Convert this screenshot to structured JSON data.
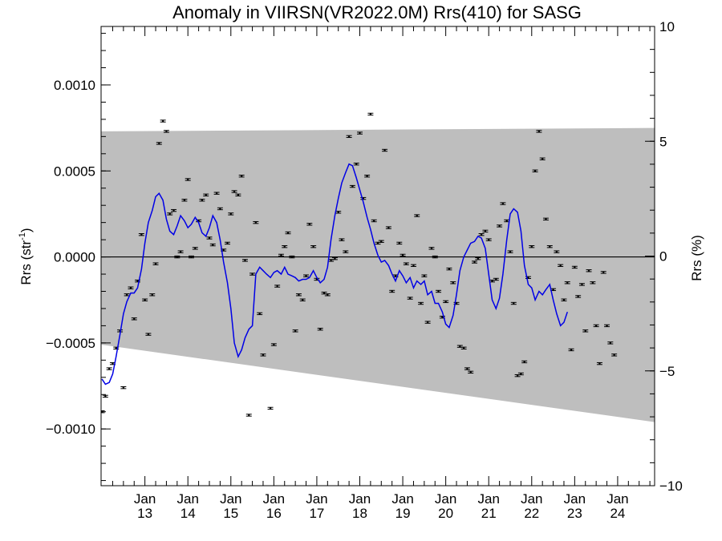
{
  "chart_data": {
    "type": "scatter",
    "title": "Anomaly in VIIRSN(VR2022.0M) Rrs(410) for SASG",
    "ylabel_left": {
      "base": "Rrs (str",
      "sup": "-1",
      "close": ")"
    },
    "ylabel_right": "Rrs (%)",
    "xlim": [
      2011.98,
      2024.86
    ],
    "ylim_left": [
      -0.00133,
      0.00134
    ],
    "ylim_right": [
      -10,
      10
    ],
    "x_ticks": [
      {
        "x": 2013.0,
        "top": "Jan",
        "bottom": "13"
      },
      {
        "x": 2014.0,
        "top": "Jan",
        "bottom": "14"
      },
      {
        "x": 2015.0,
        "top": "Jan",
        "bottom": "15"
      },
      {
        "x": 2016.0,
        "top": "Jan",
        "bottom": "16"
      },
      {
        "x": 2017.0,
        "top": "Jan",
        "bottom": "17"
      },
      {
        "x": 2018.0,
        "top": "Jan",
        "bottom": "18"
      },
      {
        "x": 2019.0,
        "top": "Jan",
        "bottom": "19"
      },
      {
        "x": 2020.0,
        "top": "Jan",
        "bottom": "20"
      },
      {
        "x": 2021.0,
        "top": "Jan",
        "bottom": "21"
      },
      {
        "x": 2022.0,
        "top": "Jan",
        "bottom": "22"
      },
      {
        "x": 2023.0,
        "top": "Jan",
        "bottom": "23"
      },
      {
        "x": 2024.0,
        "top": "Jan",
        "bottom": "24"
      }
    ],
    "y_ticks_left": [
      {
        "v": 0.001,
        "label": "0.0010"
      },
      {
        "v": 0.0005,
        "label": "0.0005"
      },
      {
        "v": 0.0,
        "label": "0.0000"
      },
      {
        "v": -0.0005,
        "label": "−0.0005"
      },
      {
        "v": -0.001,
        "label": "−0.0010"
      }
    ],
    "y_ticks_right": [
      {
        "v": 10,
        "label": "10"
      },
      {
        "v": 5,
        "label": "5"
      },
      {
        "v": 0,
        "label": "0"
      },
      {
        "v": -5,
        "label": "−5"
      },
      {
        "v": -10,
        "label": "−10"
      }
    ],
    "band": {
      "upper": [
        [
          2011.98,
          0.00073
        ],
        [
          2024.86,
          0.00075
        ]
      ],
      "lower": [
        [
          2011.98,
          -0.00051
        ],
        [
          2024.86,
          -0.00096
        ]
      ],
      "color": "#bebebe"
    },
    "zero_line": 0,
    "points": [
      [
        2012.0,
        -0.0009
      ],
      [
        2012.08,
        -0.00081
      ],
      [
        2012.17,
        -0.00065
      ],
      [
        2012.25,
        -0.00062
      ],
      [
        2012.33,
        -0.00053
      ],
      [
        2012.42,
        -0.00043
      ],
      [
        2012.5,
        -0.00076
      ],
      [
        2012.58,
        -0.00022
      ],
      [
        2012.67,
        -0.00018
      ],
      [
        2012.75,
        -0.00036
      ],
      [
        2012.83,
        -0.00014
      ],
      [
        2012.92,
        0.00013
      ],
      [
        2013.0,
        -0.00025
      ],
      [
        2013.08,
        -0.00045
      ],
      [
        2013.17,
        -0.00022
      ],
      [
        2013.25,
        -4e-05
      ],
      [
        2013.33,
        0.00066
      ],
      [
        2013.42,
        0.00079
      ],
      [
        2013.5,
        0.00073
      ],
      [
        2013.58,
        0.00025
      ],
      [
        2013.67,
        0.00027
      ],
      [
        2013.75,
        0.0
      ],
      [
        2013.83,
        3e-05
      ],
      [
        2013.92,
        0.00033
      ],
      [
        2014.0,
        0.00045
      ],
      [
        2014.08,
        0.0
      ],
      [
        2014.17,
        5e-05
      ],
      [
        2014.25,
        0.00021
      ],
      [
        2014.33,
        0.00033
      ],
      [
        2014.42,
        0.00036
      ],
      [
        2014.5,
        0.00011
      ],
      [
        2014.58,
        7e-05
      ],
      [
        2014.67,
        0.00037
      ],
      [
        2014.75,
        0.00028
      ],
      [
        2014.83,
        4e-05
      ],
      [
        2014.92,
        8e-05
      ],
      [
        2015.0,
        0.00025
      ],
      [
        2015.08,
        0.00038
      ],
      [
        2015.17,
        0.00036
      ],
      [
        2015.25,
        0.00047
      ],
      [
        2015.33,
        -2e-05
      ],
      [
        2015.42,
        -0.00092
      ],
      [
        2015.5,
        -0.0001
      ],
      [
        2015.58,
        0.0002
      ],
      [
        2015.67,
        -0.00033
      ],
      [
        2015.75,
        -0.00057
      ],
      [
        2015.92,
        -0.00088
      ],
      [
        2016.0,
        -0.00051
      ],
      [
        2016.08,
        -0.00017
      ],
      [
        2016.17,
        1e-05
      ],
      [
        2016.25,
        6e-05
      ],
      [
        2016.33,
        0.00014
      ],
      [
        2016.42,
        0.0
      ],
      [
        2016.5,
        -0.00043
      ],
      [
        2016.58,
        -0.00022
      ],
      [
        2016.67,
        -0.00025
      ],
      [
        2016.75,
        -0.00011
      ],
      [
        2016.83,
        0.00019
      ],
      [
        2016.92,
        6e-05
      ],
      [
        2017.0,
        -0.00013
      ],
      [
        2017.08,
        -0.00042
      ],
      [
        2017.17,
        -0.00021
      ],
      [
        2017.25,
        -0.00022
      ],
      [
        2017.33,
        -2e-05
      ],
      [
        2017.42,
        -1e-05
      ],
      [
        2017.5,
        0.00026
      ],
      [
        2017.58,
        0.0001
      ],
      [
        2017.67,
        3e-05
      ],
      [
        2017.75,
        0.0007
      ],
      [
        2017.83,
        0.00041
      ],
      [
        2017.92,
        0.00054
      ],
      [
        2018.0,
        0.00072
      ],
      [
        2018.08,
        0.00034
      ],
      [
        2018.17,
        0.00047
      ],
      [
        2018.25,
        0.00083
      ],
      [
        2018.33,
        0.00021
      ],
      [
        2018.42,
        8e-05
      ],
      [
        2018.5,
        9e-05
      ],
      [
        2018.58,
        0.00062
      ],
      [
        2018.67,
        0.00017
      ],
      [
        2018.75,
        -0.0002
      ],
      [
        2018.83,
        -0.00011
      ],
      [
        2018.92,
        8e-05
      ],
      [
        2019.0,
        1e-05
      ],
      [
        2019.08,
        -4e-05
      ],
      [
        2019.17,
        -0.00024
      ],
      [
        2019.25,
        -5e-05
      ],
      [
        2019.33,
        0.00024
      ],
      [
        2019.42,
        -0.00027
      ],
      [
        2019.5,
        -0.00011
      ],
      [
        2019.58,
        -0.00038
      ],
      [
        2019.67,
        5e-05
      ],
      [
        2019.75,
        0.0
      ],
      [
        2019.83,
        -0.0002
      ],
      [
        2019.92,
        -0.00035
      ],
      [
        2020.0,
        -0.00026
      ],
      [
        2020.08,
        -7e-05
      ],
      [
        2020.17,
        -0.00015
      ],
      [
        2020.25,
        -0.00027
      ],
      [
        2020.33,
        -0.00052
      ],
      [
        2020.42,
        -0.00053
      ],
      [
        2020.5,
        -0.00065
      ],
      [
        2020.58,
        -0.00067
      ],
      [
        2020.67,
        -3e-05
      ],
      [
        2020.75,
        -1e-05
      ],
      [
        2020.83,
        0.00013
      ],
      [
        2020.92,
        0.00015
      ],
      [
        2021.0,
        0.0001
      ],
      [
        2021.08,
        -0.00014
      ],
      [
        2021.17,
        -0.00013
      ],
      [
        2021.25,
        0.00018
      ],
      [
        2021.33,
        0.00031
      ],
      [
        2021.42,
        0.00021
      ],
      [
        2021.5,
        3e-05
      ],
      [
        2021.58,
        -0.00027
      ],
      [
        2021.67,
        -0.00069
      ],
      [
        2021.75,
        -0.00068
      ],
      [
        2021.83,
        -0.00061
      ],
      [
        2021.92,
        -0.00012
      ],
      [
        2022.0,
        6e-05
      ],
      [
        2022.08,
        0.0005
      ],
      [
        2022.17,
        0.00073
      ],
      [
        2022.25,
        0.00057
      ],
      [
        2022.33,
        0.00022
      ],
      [
        2022.42,
        6e-05
      ],
      [
        2022.5,
        -0.00019
      ],
      [
        2022.58,
        3e-05
      ],
      [
        2022.67,
        -5e-05
      ],
      [
        2022.75,
        -0.00025
      ],
      [
        2022.83,
        -0.00015
      ],
      [
        2022.92,
        -0.00054
      ],
      [
        2023.0,
        -6e-05
      ],
      [
        2023.08,
        -0.00023
      ],
      [
        2023.17,
        -0.00016
      ],
      [
        2023.25,
        -0.00043
      ],
      [
        2023.33,
        -8e-05
      ],
      [
        2023.42,
        -0.00015
      ],
      [
        2023.5,
        -0.0004
      ],
      [
        2023.58,
        -0.00062
      ],
      [
        2023.67,
        -9e-05
      ],
      [
        2023.75,
        -0.0004
      ],
      [
        2023.83,
        -0.0005
      ],
      [
        2023.92,
        -0.00057
      ]
    ],
    "error_half": 5.5e-06,
    "running_mean": [
      [
        2012.0,
        -0.00071
      ],
      [
        2012.08,
        -0.00074
      ],
      [
        2012.17,
        -0.00073
      ],
      [
        2012.25,
        -0.00068
      ],
      [
        2012.33,
        -0.00058
      ],
      [
        2012.42,
        -0.00045
      ],
      [
        2012.5,
        -0.00033
      ],
      [
        2012.58,
        -0.00026
      ],
      [
        2012.67,
        -0.00021
      ],
      [
        2012.75,
        -0.00021
      ],
      [
        2012.83,
        -0.00018
      ],
      [
        2012.92,
        -7e-05
      ],
      [
        2013.0,
        8e-05
      ],
      [
        2013.08,
        0.0002
      ],
      [
        2013.17,
        0.00027
      ],
      [
        2013.25,
        0.00035
      ],
      [
        2013.33,
        0.00037
      ],
      [
        2013.42,
        0.00033
      ],
      [
        2013.5,
        0.00022
      ],
      [
        2013.58,
        0.00015
      ],
      [
        2013.67,
        0.00013
      ],
      [
        2013.75,
        0.00018
      ],
      [
        2013.83,
        0.00024
      ],
      [
        2013.92,
        0.00021
      ],
      [
        2014.0,
        0.00017
      ],
      [
        2014.08,
        0.00019
      ],
      [
        2014.17,
        0.00023
      ],
      [
        2014.25,
        0.0002
      ],
      [
        2014.33,
        0.00014
      ],
      [
        2014.42,
        0.00012
      ],
      [
        2014.5,
        0.00017
      ],
      [
        2014.58,
        0.00024
      ],
      [
        2014.67,
        0.0002
      ],
      [
        2014.75,
        0.0001
      ],
      [
        2014.83,
        -3e-05
      ],
      [
        2014.92,
        -0.00015
      ],
      [
        2015.0,
        -0.0003
      ],
      [
        2015.08,
        -0.0005
      ],
      [
        2015.17,
        -0.00058
      ],
      [
        2015.25,
        -0.00054
      ],
      [
        2015.33,
        -0.00047
      ],
      [
        2015.42,
        -0.00042
      ],
      [
        2015.5,
        -0.0004
      ],
      [
        2015.58,
        -0.0001
      ],
      [
        2015.67,
        -6e-05
      ],
      [
        2015.75,
        -8e-05
      ],
      [
        2015.83,
        -0.0001
      ],
      [
        2015.92,
        -0.00012
      ],
      [
        2016.0,
        -9e-05
      ],
      [
        2016.08,
        -8e-05
      ],
      [
        2016.17,
        -0.0001
      ],
      [
        2016.25,
        -6e-05
      ],
      [
        2016.33,
        -0.0001
      ],
      [
        2016.42,
        -0.00011
      ],
      [
        2016.5,
        -0.00012
      ],
      [
        2016.58,
        -0.00014
      ],
      [
        2016.67,
        -0.00013
      ],
      [
        2016.75,
        -0.00013
      ],
      [
        2016.83,
        -0.00012
      ],
      [
        2016.92,
        -8e-05
      ],
      [
        2017.0,
        -0.00012
      ],
      [
        2017.08,
        -0.00015
      ],
      [
        2017.17,
        -0.00013
      ],
      [
        2017.25,
        -6e-05
      ],
      [
        2017.33,
        0.0001
      ],
      [
        2017.42,
        0.00024
      ],
      [
        2017.5,
        0.00034
      ],
      [
        2017.58,
        0.00043
      ],
      [
        2017.67,
        0.00049
      ],
      [
        2017.75,
        0.00054
      ],
      [
        2017.83,
        0.00053
      ],
      [
        2017.92,
        0.00046
      ],
      [
        2018.0,
        0.00039
      ],
      [
        2018.08,
        0.00032
      ],
      [
        2018.17,
        0.00023
      ],
      [
        2018.25,
        0.00016
      ],
      [
        2018.33,
        8e-05
      ],
      [
        2018.42,
        1e-05
      ],
      [
        2018.5,
        -3e-05
      ],
      [
        2018.58,
        -2e-05
      ],
      [
        2018.67,
        -5e-05
      ],
      [
        2018.75,
        -0.0001
      ],
      [
        2018.83,
        -0.00014
      ],
      [
        2018.92,
        -8e-05
      ],
      [
        2019.0,
        -0.00011
      ],
      [
        2019.08,
        -0.00015
      ],
      [
        2019.17,
        -0.00012
      ],
      [
        2019.25,
        -0.00018
      ],
      [
        2019.33,
        -0.00014
      ],
      [
        2019.42,
        -0.00016
      ],
      [
        2019.5,
        -0.00014
      ],
      [
        2019.58,
        -0.00022
      ],
      [
        2019.67,
        -0.0002
      ],
      [
        2019.75,
        -0.00027
      ],
      [
        2019.83,
        -0.00027
      ],
      [
        2019.92,
        -0.00032
      ],
      [
        2020.0,
        -0.00039
      ],
      [
        2020.08,
        -0.00041
      ],
      [
        2020.17,
        -0.00034
      ],
      [
        2020.25,
        -0.00022
      ],
      [
        2020.33,
        -8e-05
      ],
      [
        2020.42,
        0.0
      ],
      [
        2020.5,
        4e-05
      ],
      [
        2020.58,
        8e-05
      ],
      [
        2020.67,
        9e-05
      ],
      [
        2020.75,
        0.00012
      ],
      [
        2020.83,
        0.00011
      ],
      [
        2020.92,
        5e-05
      ],
      [
        2021.0,
        -0.0001
      ],
      [
        2021.08,
        -0.00025
      ],
      [
        2021.17,
        -0.0003
      ],
      [
        2021.25,
        -0.00024
      ],
      [
        2021.33,
        -0.0001
      ],
      [
        2021.42,
        0.0001
      ],
      [
        2021.5,
        0.00025
      ],
      [
        2021.58,
        0.00028
      ],
      [
        2021.67,
        0.00026
      ],
      [
        2021.75,
        0.00015
      ],
      [
        2021.83,
        -5e-05
      ],
      [
        2021.92,
        -0.00016
      ],
      [
        2022.0,
        -0.00018
      ],
      [
        2022.08,
        -0.00025
      ],
      [
        2022.17,
        -0.0002
      ],
      [
        2022.25,
        -0.00022
      ],
      [
        2022.33,
        -0.00019
      ],
      [
        2022.42,
        -0.00016
      ],
      [
        2022.5,
        -0.00025
      ],
      [
        2022.58,
        -0.00033
      ],
      [
        2022.67,
        -0.0004
      ],
      [
        2022.75,
        -0.00038
      ],
      [
        2022.83,
        -0.00032
      ]
    ],
    "running_mean_color": "#0000e6",
    "series_note_x_shift": 0
  }
}
